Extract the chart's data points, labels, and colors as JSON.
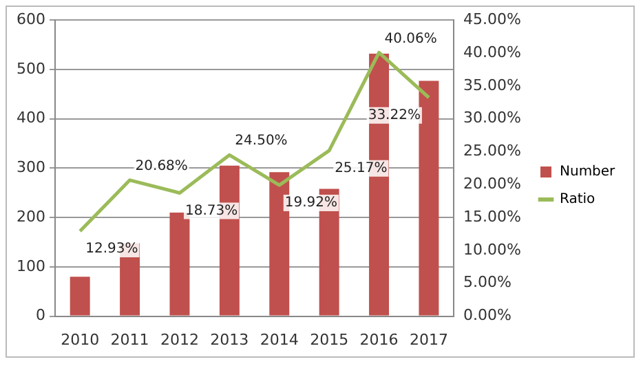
{
  "chart_data": {
    "type": "bar",
    "categories": [
      "2010",
      "2011",
      "2012",
      "2013",
      "2014",
      "2015",
      "2016",
      "2017"
    ],
    "series": [
      {
        "name": "Number",
        "color": "#c0504d",
        "values": [
          80,
          148,
          210,
          305,
          292,
          258,
          532,
          477
        ]
      },
      {
        "name": "Ratio",
        "type": "line",
        "axis": "y2",
        "color": "#9bbb59",
        "values": [
          12.93,
          20.68,
          18.73,
          24.5,
          19.92,
          25.17,
          40.06,
          33.22
        ],
        "value_labels": [
          "12.93%",
          "20.68%",
          "18.73%",
          "24.50%",
          "19.92%",
          "25.17%",
          "40.06%",
          "33.22%"
        ]
      }
    ],
    "ylim": [
      0,
      600
    ],
    "yticks": [
      0,
      100,
      200,
      300,
      400,
      500,
      600
    ],
    "y2lim": [
      0,
      45
    ],
    "y2ticks": [
      {
        "value": 0,
        "label": "0.00%"
      },
      {
        "value": 5,
        "label": "5.00%"
      },
      {
        "value": 10,
        "label": "10.00%"
      },
      {
        "value": 15,
        "label": "15.00%"
      },
      {
        "value": 20,
        "label": "20.00%"
      },
      {
        "value": 25,
        "label": "25.00%"
      },
      {
        "value": 30,
        "label": "30.00%"
      },
      {
        "value": 35,
        "label": "35.00%"
      },
      {
        "value": 40,
        "label": "40.00%"
      },
      {
        "value": 45,
        "label": "45.00%"
      }
    ],
    "grid": "y",
    "legend": "right",
    "marker": "none"
  }
}
